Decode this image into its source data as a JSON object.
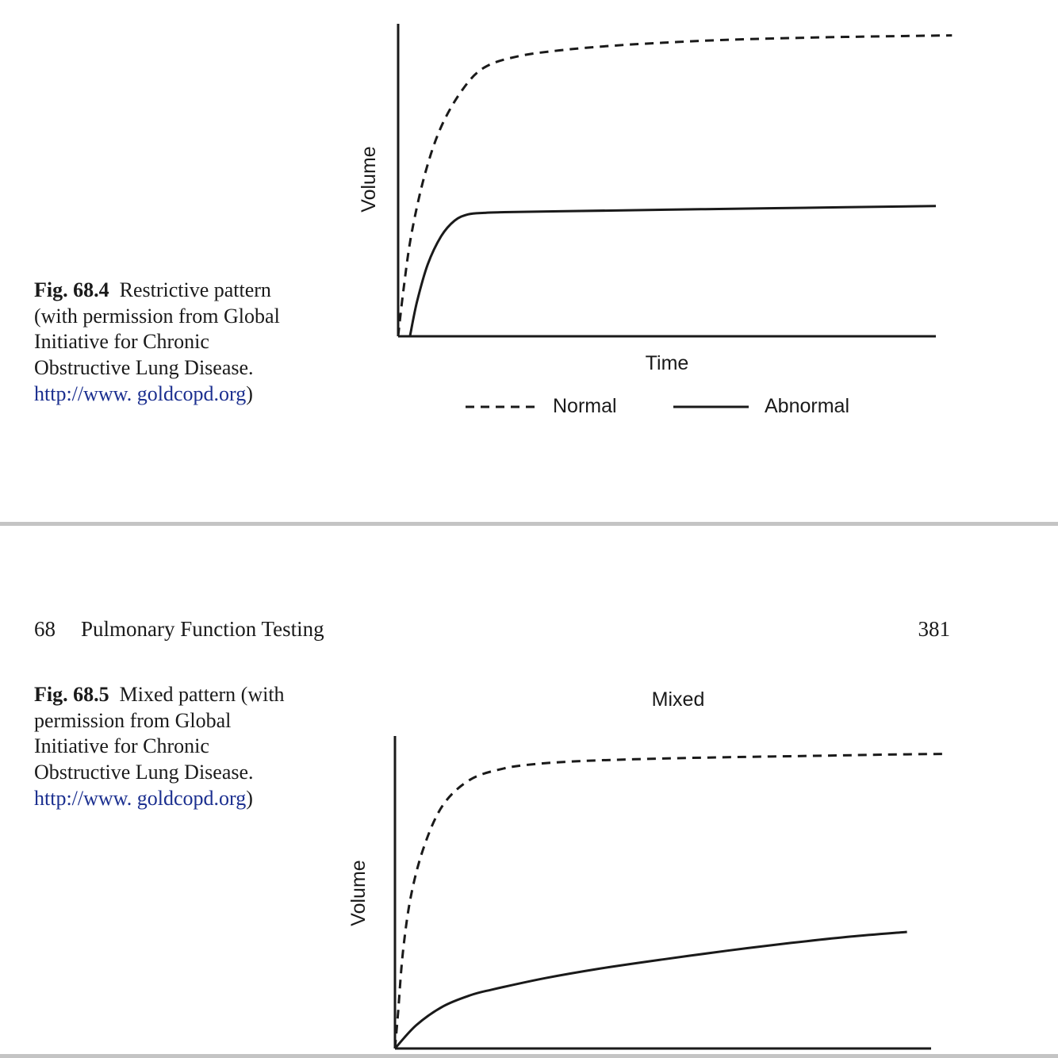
{
  "header": {
    "chapter_number": "68",
    "chapter_title": "Pulmonary Function Testing",
    "page_number": "381"
  },
  "figures": [
    {
      "label": "Fig. 68.4",
      "caption_text": "Restrictive pattern (with permission from Global Initiative for Chronic Obstructive Lung Disease.",
      "link_text": "http://www. goldcopd.org",
      "closing": ")"
    },
    {
      "label": "Fig. 68.5",
      "caption_text": "Mixed pattern (with permission from Global Initiative for Chronic Obstructive Lung Disease.",
      "link_text": "http://www. goldcopd.org",
      "closing": ")"
    }
  ],
  "chart_data": [
    {
      "type": "line",
      "title": "",
      "xlabel": "Time",
      "ylabel": "Volume",
      "xlim": [
        0,
        10
      ],
      "ylim": [
        0,
        10
      ],
      "legend": "bottom",
      "grid": false,
      "series": [
        {
          "name": "Normal",
          "style": "dashed",
          "x": [
            0,
            0.1,
            0.25,
            0.5,
            0.8,
            1.2,
            1.6,
            2.2,
            3,
            4,
            5,
            6,
            7,
            8,
            9,
            10.3
          ],
          "y": [
            0,
            1.5,
            3.3,
            5.2,
            6.7,
            7.9,
            8.6,
            8.95,
            9.15,
            9.3,
            9.4,
            9.48,
            9.53,
            9.57,
            9.6,
            9.63
          ]
        },
        {
          "name": "Abnormal",
          "style": "solid",
          "x": [
            0.22,
            0.35,
            0.55,
            0.8,
            1.05,
            1.3,
            1.6,
            1.9,
            3,
            5,
            7,
            10
          ],
          "y": [
            0,
            1.1,
            2.3,
            3.2,
            3.7,
            3.9,
            3.95,
            3.97,
            4.0,
            4.05,
            4.1,
            4.17
          ]
        }
      ]
    },
    {
      "type": "line",
      "title": "Mixed",
      "xlabel": "",
      "ylabel": "Volume",
      "xlim": [
        0,
        10
      ],
      "ylim": [
        0,
        10
      ],
      "legend": "none",
      "grid": false,
      "series": [
        {
          "name": "Normal",
          "style": "dashed",
          "x": [
            0,
            0.06,
            0.15,
            0.3,
            0.55,
            0.9,
            1.4,
            2,
            2.6,
            3.5,
            5,
            6.5,
            8,
            9,
            10.3
          ],
          "y": [
            0,
            1.2,
            3.1,
            4.9,
            6.5,
            7.8,
            8.6,
            8.95,
            9.1,
            9.2,
            9.28,
            9.33,
            9.37,
            9.4,
            9.43
          ]
        },
        {
          "name": "Abnormal",
          "style": "solid",
          "x": [
            0,
            0.4,
            0.9,
            1.4,
            1.8,
            2.8,
            3.8,
            5,
            6.2,
            7.4,
            8.5,
            9.55
          ],
          "y": [
            0,
            0.75,
            1.35,
            1.7,
            1.88,
            2.25,
            2.55,
            2.85,
            3.13,
            3.38,
            3.58,
            3.73
          ]
        }
      ]
    }
  ]
}
